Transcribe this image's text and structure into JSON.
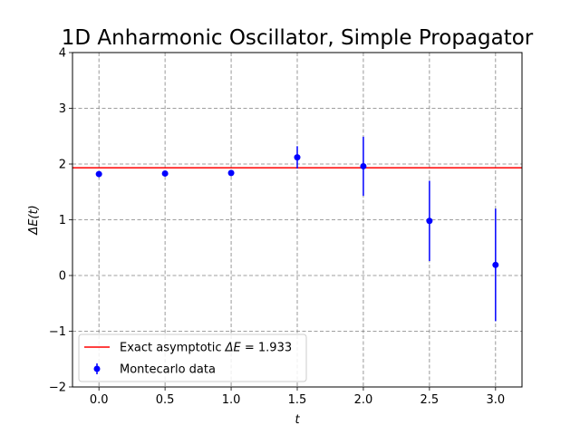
{
  "chart_data": {
    "type": "scatter",
    "title": "1D Anharmonic Oscillator, Simple Propagator",
    "xlabel": "t",
    "ylabel": "ΔE(t)",
    "xlim": [
      -0.2,
      3.2
    ],
    "ylim": [
      -2,
      4
    ],
    "x_ticks": [
      0.0,
      0.5,
      1.0,
      1.5,
      2.0,
      2.5,
      3.0
    ],
    "x_tick_labels": [
      "0.0",
      "0.5",
      "1.0",
      "1.5",
      "2.0",
      "2.5",
      "3.0"
    ],
    "y_ticks": [
      -2,
      -1,
      0,
      1,
      2,
      3,
      4
    ],
    "y_tick_labels": [
      "−2",
      "−1",
      "0",
      "1",
      "2",
      "3",
      "4"
    ],
    "grid": true,
    "legend_position": "lower-left",
    "series": [
      {
        "name": "Montecarlo data",
        "kind": "errorbar",
        "color": "#0000ff",
        "points": [
          {
            "x": 0.0,
            "y": 1.82,
            "err": 0.03
          },
          {
            "x": 0.5,
            "y": 1.83,
            "err": 0.03
          },
          {
            "x": 1.0,
            "y": 1.84,
            "err": 0.05
          },
          {
            "x": 1.5,
            "y": 2.12,
            "err": 0.2
          },
          {
            "x": 2.0,
            "y": 1.96,
            "err": 0.53
          },
          {
            "x": 2.5,
            "y": 0.98,
            "err": 0.72
          },
          {
            "x": 3.0,
            "y": 0.19,
            "err": 1.01
          }
        ]
      },
      {
        "name": "Exact asymptotic ΔE = 1.933",
        "name_prefix": "Exact asymptotic ",
        "name_math": "ΔE",
        "name_suffix": " = 1.933",
        "kind": "hline",
        "color": "#ff0000",
        "y": 1.933
      }
    ]
  }
}
